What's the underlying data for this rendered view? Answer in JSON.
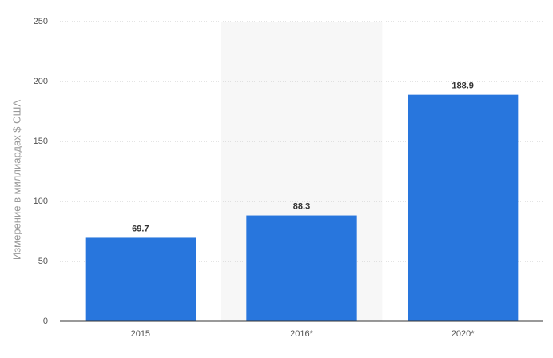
{
  "chart_data": {
    "type": "bar",
    "y_label": "Измерение в миллиардах $ США",
    "categories": [
      "2015",
      "2016*",
      "2020*"
    ],
    "values": [
      69.7,
      88.3,
      188.9
    ],
    "color": "#2876dd",
    "ylim": [
      0,
      250
    ],
    "yticks": [
      0,
      50,
      100,
      150,
      200,
      250
    ],
    "grid": true
  }
}
